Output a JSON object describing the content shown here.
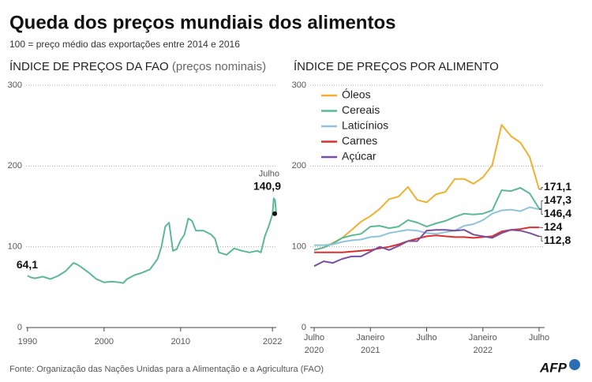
{
  "header": {
    "title": "Queda dos preços mundiais dos alimentos",
    "subtitle": "100 = preço médio das exportações entre 2014 e 2016"
  },
  "chart_data": [
    {
      "type": "line",
      "title": "ÍNDICE DE PREÇOS DA FAO",
      "subtitle": "(preços nominais)",
      "color": "#5cb896",
      "x": [
        1990,
        1990.5,
        1991,
        1992,
        1993,
        1994,
        1995,
        1996,
        1996.5,
        1997,
        1998,
        1999,
        2000,
        2001,
        2002,
        2002.5,
        2003,
        2004,
        2005,
        2006,
        2007,
        2007.5,
        2008,
        2008.5,
        2009,
        2009.5,
        2010,
        2010.5,
        2011,
        2011.5,
        2012,
        2013,
        2014,
        2014.5,
        2015,
        2016,
        2017,
        2018,
        2019,
        2020,
        2020.5,
        2021,
        2021.5,
        2022,
        2022.17,
        2022.33,
        2022.5
      ],
      "values": [
        64.1,
        62,
        61,
        63,
        60,
        64,
        70,
        80,
        78,
        75,
        68,
        60,
        56,
        57,
        56,
        55,
        60,
        65,
        68,
        72,
        85,
        100,
        125,
        130,
        95,
        97,
        108,
        115,
        135,
        132,
        120,
        120,
        115,
        110,
        93,
        90,
        98,
        95,
        93,
        95,
        93,
        113,
        125,
        140,
        160,
        158,
        140.9
      ],
      "value_labels": [
        "64,1",
        null,
        null,
        null,
        null,
        null,
        null,
        null,
        null,
        null,
        null,
        null,
        null,
        null,
        null,
        null,
        null,
        null,
        null,
        null,
        null,
        null,
        null,
        null,
        null,
        null,
        null,
        null,
        null,
        null,
        null,
        null,
        null,
        null,
        null,
        null,
        null,
        null,
        null,
        null,
        null,
        null,
        null,
        null,
        null,
        null,
        "140,9"
      ],
      "annotation": "Julho",
      "xlim": [
        1989.5,
        2022.5
      ],
      "xticks": [
        1990,
        2000,
        2010,
        2022
      ],
      "ylim": [
        0,
        300
      ],
      "yticks": [
        0,
        100,
        200,
        300
      ],
      "grid": true
    },
    {
      "type": "line",
      "title": "ÍNDICE DE PREÇOS POR ALIMENTO",
      "legend": "upper left",
      "categories": [
        "Julho",
        null,
        null,
        null,
        null,
        null,
        "Janeiro",
        null,
        null,
        null,
        null,
        null,
        "Julho",
        null,
        null,
        null,
        null,
        null,
        "Janeiro",
        null,
        null,
        null,
        null,
        null,
        "Julho"
      ],
      "year_labels": [
        "2020",
        null,
        null,
        null,
        null,
        null,
        "2021",
        null,
        null,
        null,
        null,
        null,
        null,
        null,
        null,
        null,
        null,
        null,
        "2022",
        null,
        null,
        null,
        null,
        null,
        null
      ],
      "series": [
        {
          "name": "Óleos",
          "color": "#f0b030",
          "values": [
            96,
            99,
            105,
            111,
            121,
            131,
            138,
            147,
            159,
            162,
            174,
            158,
            155,
            165,
            168,
            184,
            184,
            178,
            186,
            201,
            251,
            237,
            229,
            211,
            171.1
          ],
          "value_labels": [
            null,
            null,
            null,
            null,
            null,
            null,
            null,
            null,
            null,
            null,
            null,
            null,
            null,
            null,
            null,
            null,
            null,
            null,
            null,
            null,
            null,
            null,
            null,
            null,
            "171,1"
          ]
        },
        {
          "name": "Cereais",
          "color": "#5cb896",
          "values": [
            96,
            99,
            104,
            111,
            114,
            116,
            125,
            126,
            123,
            125,
            133,
            130,
            125,
            129,
            132,
            137,
            141,
            140,
            141,
            145,
            170,
            169,
            173,
            166,
            147.3
          ],
          "value_labels": [
            null,
            null,
            null,
            null,
            null,
            null,
            null,
            null,
            null,
            null,
            null,
            null,
            null,
            null,
            null,
            null,
            null,
            null,
            null,
            null,
            null,
            null,
            null,
            null,
            "147,3"
          ]
        },
        {
          "name": "Laticínios",
          "color": "#8ec3de",
          "values": [
            102,
            102,
            103,
            106,
            108,
            109,
            112,
            113,
            117,
            119,
            121,
            120,
            117,
            116,
            118,
            120,
            126,
            128,
            133,
            141,
            145,
            146,
            144,
            149,
            146.4
          ],
          "value_labels": [
            null,
            null,
            null,
            null,
            null,
            null,
            null,
            null,
            null,
            null,
            null,
            null,
            null,
            null,
            null,
            null,
            null,
            null,
            null,
            null,
            null,
            null,
            null,
            null,
            "146,4"
          ]
        },
        {
          "name": "Carnes",
          "color": "#d93030",
          "values": [
            93,
            93,
            93,
            93,
            94,
            95,
            96,
            98,
            100,
            103,
            107,
            110,
            113,
            114,
            113,
            112,
            112,
            111,
            112,
            113,
            119,
            121,
            122,
            124,
            124
          ]
        },
        {
          "name": "Açúcar",
          "color": "#7a4fa0",
          "values": [
            76,
            82,
            80,
            85,
            88,
            88,
            94,
            100,
            96,
            101,
            107,
            107,
            120,
            121,
            121,
            120,
            121,
            115,
            113,
            111,
            117,
            121,
            120,
            117,
            112.8
          ],
          "value_labels": [
            null,
            null,
            null,
            null,
            null,
            null,
            null,
            null,
            null,
            null,
            null,
            null,
            null,
            null,
            null,
            null,
            null,
            null,
            null,
            null,
            null,
            null,
            null,
            null,
            "112,8"
          ]
        }
      ],
      "ylim": [
        0,
        300
      ],
      "yticks": [
        0,
        100,
        200,
        300
      ],
      "grid": true
    }
  ],
  "footer": {
    "source": "Fonte: Organização das Nações Unidas para a Alimentação e a Agricultura (FAO)",
    "logo": "AFP"
  }
}
